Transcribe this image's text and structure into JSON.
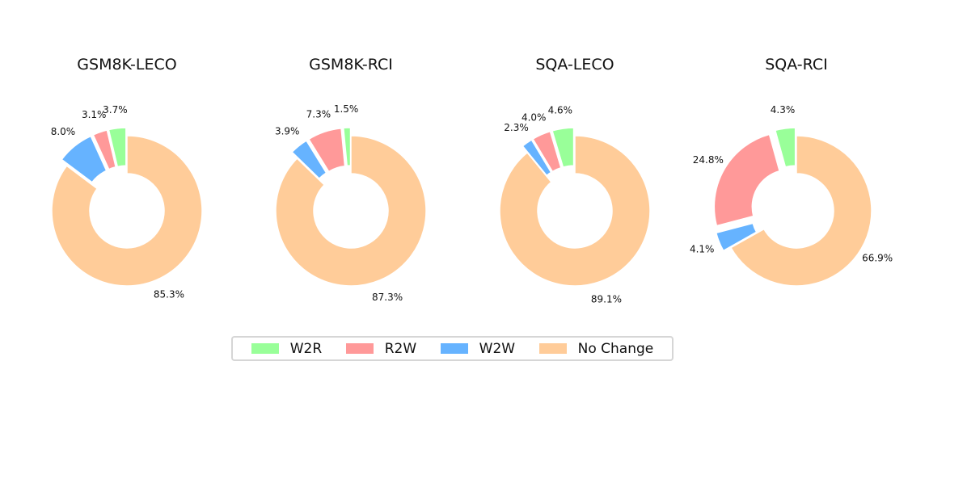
{
  "colors": {
    "W2R": "#99ff99",
    "R2W": "#ff9999",
    "W2W": "#66b3ff",
    "No Change": "#ffcc99"
  },
  "legend": [
    "W2R",
    "R2W",
    "W2W",
    "No Change"
  ],
  "chart_data": [
    {
      "type": "pie",
      "variant": "donut",
      "title": "GSM8K-LECO",
      "categories": [
        "W2R",
        "R2W",
        "W2W",
        "No Change"
      ],
      "values": [
        3.7,
        3.1,
        8.0,
        85.3
      ],
      "labels": [
        "3.7%",
        "3.1%",
        "8.0%",
        "85.3%"
      ]
    },
    {
      "type": "pie",
      "variant": "donut",
      "title": "GSM8K-RCI",
      "categories": [
        "W2R",
        "R2W",
        "W2W",
        "No Change"
      ],
      "values": [
        1.5,
        7.3,
        3.9,
        87.3
      ],
      "labels": [
        "1.5%",
        "7.3%",
        "3.9%",
        "87.3%"
      ]
    },
    {
      "type": "pie",
      "variant": "donut",
      "title": "SQA-LECO",
      "categories": [
        "W2R",
        "R2W",
        "W2W",
        "No Change"
      ],
      "values": [
        4.6,
        4.0,
        2.3,
        89.1
      ],
      "labels": [
        "4.6%",
        "4.0%",
        "2.3%",
        "89.1%"
      ]
    },
    {
      "type": "pie",
      "variant": "donut",
      "title": "SQA-RCI",
      "categories": [
        "W2R",
        "R2W",
        "W2W",
        "No Change"
      ],
      "values": [
        4.3,
        24.8,
        4.1,
        66.9
      ],
      "labels": [
        "4.3%",
        "24.8%",
        "4.1%",
        "66.9%"
      ]
    }
  ]
}
